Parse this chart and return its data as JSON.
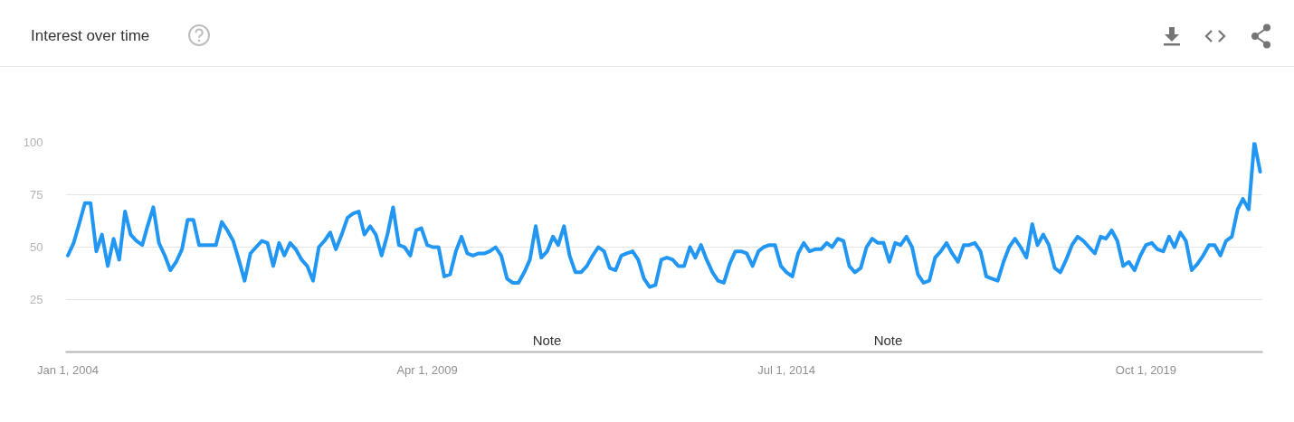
{
  "chart_data": {
    "type": "line",
    "title": "Interest over time",
    "x": [
      "2004-01",
      "2004-02",
      "2004-03",
      "2004-04",
      "2004-05",
      "2004-06",
      "2004-07",
      "2004-08",
      "2004-09",
      "2004-10",
      "2004-11",
      "2004-12",
      "2005-01",
      "2005-02",
      "2005-03",
      "2005-04",
      "2005-05",
      "2005-06",
      "2005-07",
      "2005-08",
      "2005-09",
      "2005-10",
      "2005-11",
      "2005-12",
      "2006-01",
      "2006-02",
      "2006-03",
      "2006-04",
      "2006-05",
      "2006-06",
      "2006-07",
      "2006-08",
      "2006-09",
      "2006-10",
      "2006-11",
      "2006-12",
      "2007-01",
      "2007-02",
      "2007-03",
      "2007-04",
      "2007-05",
      "2007-06",
      "2007-07",
      "2007-08",
      "2007-09",
      "2007-10",
      "2007-11",
      "2007-12",
      "2008-01",
      "2008-02",
      "2008-03",
      "2008-04",
      "2008-05",
      "2008-06",
      "2008-07",
      "2008-08",
      "2008-09",
      "2008-10",
      "2008-11",
      "2008-12",
      "2009-01",
      "2009-02",
      "2009-03",
      "2009-04",
      "2009-05",
      "2009-06",
      "2009-07",
      "2009-08",
      "2009-09",
      "2009-10",
      "2009-11",
      "2009-12",
      "2010-01",
      "2010-02",
      "2010-03",
      "2010-04",
      "2010-05",
      "2010-06",
      "2010-07",
      "2010-08",
      "2010-09",
      "2010-10",
      "2010-11",
      "2010-12",
      "2011-01",
      "2011-02",
      "2011-03",
      "2011-04",
      "2011-05",
      "2011-06",
      "2011-07",
      "2011-08",
      "2011-09",
      "2011-10",
      "2011-11",
      "2011-12",
      "2012-01",
      "2012-02",
      "2012-03",
      "2012-04",
      "2012-05",
      "2012-06",
      "2012-07",
      "2012-08",
      "2012-09",
      "2012-10",
      "2012-11",
      "2012-12",
      "2013-01",
      "2013-02",
      "2013-03",
      "2013-04",
      "2013-05",
      "2013-06",
      "2013-07",
      "2013-08",
      "2013-09",
      "2013-10",
      "2013-11",
      "2013-12",
      "2014-01",
      "2014-02",
      "2014-03",
      "2014-04",
      "2014-05",
      "2014-06",
      "2014-07",
      "2014-08",
      "2014-09",
      "2014-10",
      "2014-11",
      "2014-12",
      "2015-01",
      "2015-02",
      "2015-03",
      "2015-04",
      "2015-05",
      "2015-06",
      "2015-07",
      "2015-08",
      "2015-09",
      "2015-10",
      "2015-11",
      "2015-12",
      "2016-01",
      "2016-02",
      "2016-03",
      "2016-04",
      "2016-05",
      "2016-06",
      "2016-07",
      "2016-08",
      "2016-09",
      "2016-10",
      "2016-11",
      "2016-12",
      "2017-01",
      "2017-02",
      "2017-03",
      "2017-04",
      "2017-05",
      "2017-06",
      "2017-07",
      "2017-08",
      "2017-09",
      "2017-10",
      "2017-11",
      "2017-12",
      "2018-01",
      "2018-02",
      "2018-03",
      "2018-04",
      "2018-05",
      "2018-06",
      "2018-07",
      "2018-08",
      "2018-09",
      "2018-10",
      "2018-11",
      "2018-12",
      "2019-01",
      "2019-02",
      "2019-03",
      "2019-04",
      "2019-05",
      "2019-06",
      "2019-07",
      "2019-08",
      "2019-09",
      "2019-10",
      "2019-11",
      "2019-12",
      "2020-01",
      "2020-02",
      "2020-03",
      "2020-04",
      "2020-05",
      "2020-06",
      "2020-07",
      "2020-08",
      "2020-09",
      "2020-10",
      "2020-11",
      "2020-12",
      "2021-01",
      "2021-02",
      "2021-03",
      "2021-04",
      "2021-05",
      "2021-06"
    ],
    "series": [
      {
        "color": "#2196f3",
        "values": [
          46,
          52,
          61,
          71,
          71,
          48,
          56,
          41,
          54,
          44,
          67,
          56,
          53,
          51,
          60,
          69,
          52,
          46,
          39,
          43,
          49,
          63,
          63,
          51,
          51,
          51,
          51,
          62,
          58,
          53,
          44,
          34,
          47,
          50,
          53,
          52,
          41,
          52,
          46,
          52,
          49,
          44,
          41,
          34,
          50,
          53,
          57,
          49,
          56,
          64,
          66,
          67,
          56,
          60,
          56,
          46,
          56,
          69,
          51,
          50,
          46,
          58,
          59,
          51,
          50,
          50,
          36,
          37,
          48,
          55,
          47,
          46,
          47,
          47,
          48,
          50,
          46,
          35,
          33,
          33,
          38,
          44,
          60,
          45,
          48,
          55,
          51,
          60,
          46,
          38,
          38,
          41,
          46,
          50,
          48,
          40,
          39,
          46,
          47,
          48,
          44,
          35,
          31,
          32,
          44,
          45,
          44,
          41,
          41,
          50,
          45,
          51,
          44,
          38,
          34,
          33,
          42,
          48,
          48,
          47,
          41,
          48,
          50,
          51,
          51,
          41,
          38,
          36,
          47,
          52,
          48,
          49,
          49,
          52,
          50,
          54,
          53,
          41,
          38,
          40,
          50,
          54,
          52,
          52,
          43,
          52,
          51,
          55,
          50,
          37,
          33,
          34,
          45,
          48,
          52,
          47,
          43,
          51,
          51,
          52,
          48,
          36,
          35,
          34,
          43,
          50,
          54,
          50,
          45,
          61,
          51,
          56,
          51,
          40,
          38,
          44,
          51,
          55,
          53,
          50,
          47,
          55,
          54,
          58,
          53,
          41,
          43,
          39,
          46,
          51,
          52,
          49,
          48,
          55,
          50,
          57,
          53,
          39,
          42,
          46,
          51,
          51,
          46,
          53,
          55,
          68,
          73,
          68,
          100,
          86
        ]
      }
    ],
    "xlim": [
      "2003-12-20",
      "2021-06-15"
    ],
    "xticks": [
      {
        "value": "2004-01-01",
        "label": "Jan 1, 2004"
      },
      {
        "value": "2009-04-01",
        "label": "Apr 1, 2009"
      },
      {
        "value": "2014-07-01",
        "label": "Jul 1, 2014"
      },
      {
        "value": "2019-10-01",
        "label": "Oct 1, 2019"
      }
    ],
    "ylim": [
      0,
      100
    ],
    "yticks": [
      25,
      50,
      75,
      100
    ],
    "grid": "y",
    "annotations": [
      "Note",
      "Note"
    ]
  }
}
